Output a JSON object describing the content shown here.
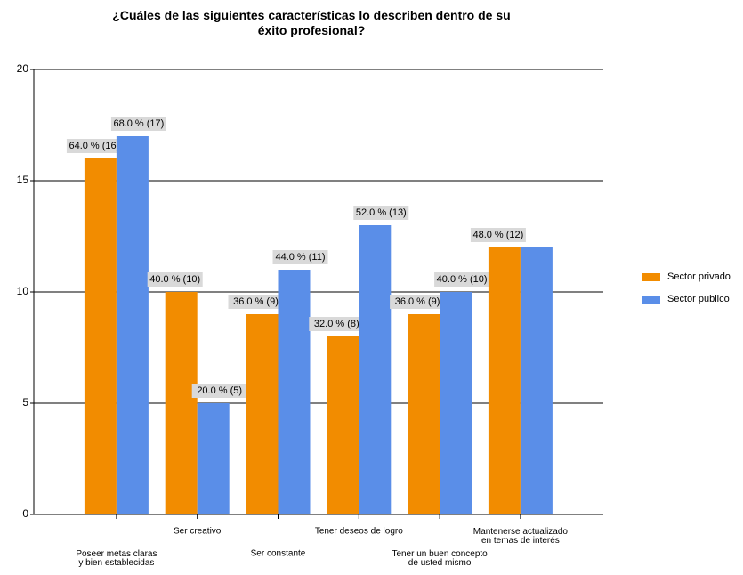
{
  "chart_data": {
    "type": "bar",
    "title": "¿Cuáles de las siguientes características lo describen dentro de su\néxito profesional?",
    "categories": [
      "Poseer metas claras\ny bien establecidas",
      "Ser creativo",
      "Ser constante",
      "Tener deseos de logro",
      "Tener un buen concepto\nde usted mismo",
      "Mantenerse actualizado\nen temas de interés"
    ],
    "series": [
      {
        "name": "Sector privado",
        "color": "#f28c00",
        "values": [
          16,
          10,
          9,
          8,
          9,
          12
        ],
        "value_labels": [
          "64.0 % (16)",
          "40.0 % (10)",
          "36.0 % (9)",
          "32.0 % (8)",
          "36.0 % (9)",
          "48.0 % (12)"
        ]
      },
      {
        "name": "Sector publico",
        "color": "#5a8ee8",
        "values": [
          17,
          5,
          11,
          13,
          10,
          12
        ],
        "value_labels": [
          "68.0 % (17)",
          "20.0 % (5)",
          "44.0 % (11)",
          "52.0 % (13)",
          "40.0 % (10)",
          null
        ]
      }
    ],
    "ylim": [
      0,
      20
    ],
    "yticks": [
      0,
      5,
      10,
      15,
      20
    ],
    "grid": true,
    "legend": "right"
  }
}
